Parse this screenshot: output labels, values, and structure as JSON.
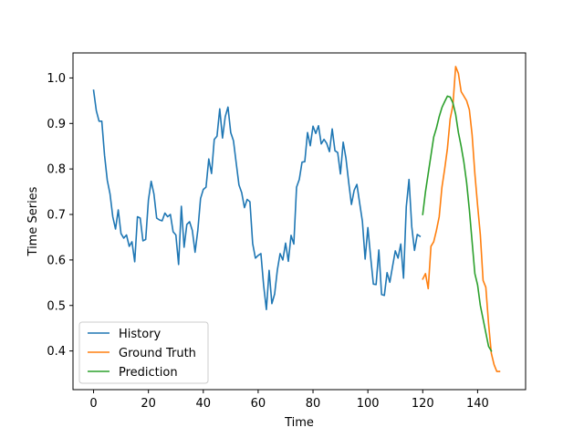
{
  "chart_data": {
    "type": "line",
    "xlabel": "Time",
    "ylabel": "Time Series",
    "xlim": [
      -7.5,
      157.5
    ],
    "ylim": [
      0.315,
      1.055
    ],
    "xticks": [
      0,
      20,
      40,
      60,
      80,
      100,
      120,
      140
    ],
    "yticks": [
      0.4,
      0.5,
      0.6,
      0.7,
      0.8,
      0.9,
      1.0
    ],
    "xtick_labels": [
      "0",
      "20",
      "40",
      "60",
      "80",
      "100",
      "120",
      "140"
    ],
    "ytick_labels": [
      "0.4",
      "0.5",
      "0.6",
      "0.7",
      "0.8",
      "0.9",
      "1.0"
    ],
    "grid": false,
    "legend_position": "lower-left",
    "series": [
      {
        "name": "History",
        "color": "#1f77b4",
        "x_start": 0,
        "values": [
          0.973,
          0.928,
          0.905,
          0.905,
          0.83,
          0.775,
          0.745,
          0.695,
          0.668,
          0.71,
          0.658,
          0.648,
          0.655,
          0.63,
          0.64,
          0.596,
          0.695,
          0.692,
          0.642,
          0.645,
          0.732,
          0.773,
          0.745,
          0.692,
          0.688,
          0.686,
          0.703,
          0.695,
          0.7,
          0.662,
          0.655,
          0.59,
          0.718,
          0.628,
          0.678,
          0.684,
          0.665,
          0.617,
          0.665,
          0.735,
          0.755,
          0.76,
          0.822,
          0.79,
          0.865,
          0.872,
          0.932,
          0.868,
          0.915,
          0.936,
          0.88,
          0.862,
          0.813,
          0.765,
          0.748,
          0.715,
          0.733,
          0.728,
          0.636,
          0.604,
          0.61,
          0.614,
          0.544,
          0.491,
          0.577,
          0.504,
          0.525,
          0.578,
          0.614,
          0.6,
          0.637,
          0.597,
          0.654,
          0.635,
          0.76,
          0.777,
          0.815,
          0.816,
          0.88,
          0.851,
          0.894,
          0.878,
          0.895,
          0.855,
          0.865,
          0.856,
          0.838,
          0.888,
          0.84,
          0.836,
          0.789,
          0.859,
          0.824,
          0.771,
          0.722,
          0.753,
          0.766,
          0.725,
          0.685,
          0.602,
          0.671,
          0.607,
          0.547,
          0.546,
          0.622,
          0.524,
          0.522,
          0.572,
          0.551,
          0.586,
          0.62,
          0.604,
          0.635,
          0.56,
          0.717,
          0.777,
          0.673,
          0.621,
          0.656,
          0.652
        ]
      },
      {
        "name": "Ground Truth",
        "color": "#ff7f0e",
        "x_start": 120,
        "values": [
          0.558,
          0.57,
          0.537,
          0.63,
          0.64,
          0.665,
          0.695,
          0.76,
          0.8,
          0.845,
          0.91,
          0.94,
          1.025,
          1.01,
          0.97,
          0.96,
          0.95,
          0.93,
          0.875,
          0.79,
          0.72,
          0.655,
          0.555,
          0.54,
          0.46,
          0.395,
          0.37,
          0.355,
          0.355
        ]
      },
      {
        "name": "Prediction",
        "color": "#2ca02c",
        "x_start": 120,
        "values": [
          0.7,
          0.75,
          0.79,
          0.83,
          0.87,
          0.89,
          0.915,
          0.935,
          0.948,
          0.96,
          0.958,
          0.945,
          0.92,
          0.88,
          0.85,
          0.815,
          0.77,
          0.71,
          0.64,
          0.57,
          0.545,
          0.5,
          0.47,
          0.44,
          0.41,
          0.4
        ]
      }
    ]
  }
}
